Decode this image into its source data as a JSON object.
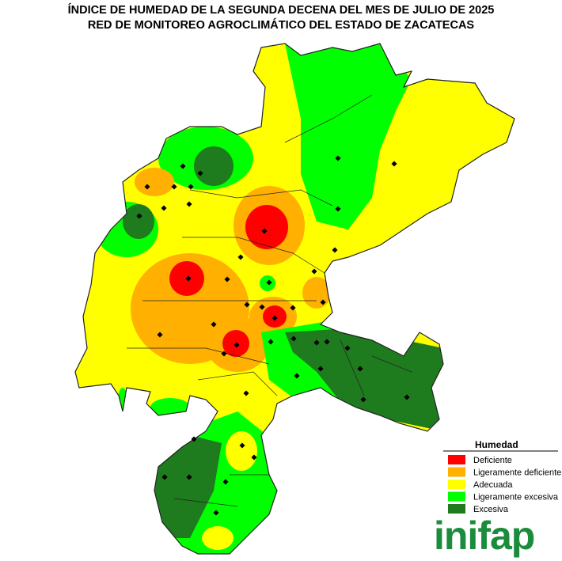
{
  "title": [
    "ÍNDICE DE HUMEDAD DE LA SEGUNDA DECENA DEL MES DE JULIO DE 2025",
    "RED DE MONITOREO AGROCLIMÁTICO DEL ESTADO DE ZACATECAS"
  ],
  "legend": {
    "title": "Humedad",
    "items": [
      {
        "label": "Deficiente",
        "color": "#ff0000"
      },
      {
        "label": "Ligeramente deficiente",
        "color": "#ffb000"
      },
      {
        "label": "Adecuada",
        "color": "#ffff00"
      },
      {
        "label": "Ligeramente excesiva",
        "color": "#00ff00"
      },
      {
        "label": "Excesiva",
        "color": "#1e7b1e"
      }
    ]
  },
  "logo": "inifap"
}
